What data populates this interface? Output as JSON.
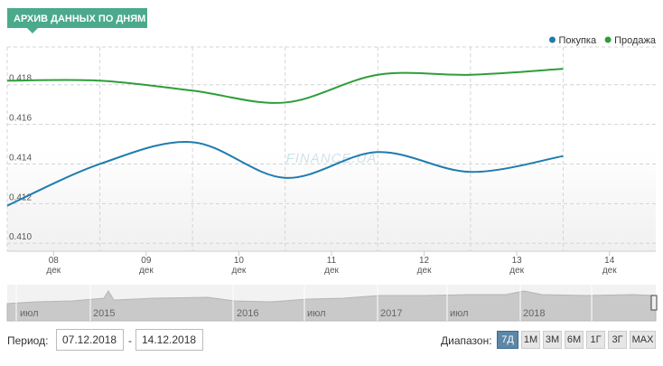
{
  "badge": "АРХИВ ДАННЫХ ПО ДНЯМ",
  "chart_data": {
    "type": "line",
    "watermark": "FINANCE.UA",
    "x": [
      7.5,
      8.5,
      9.5,
      10.5,
      11.5,
      12.5,
      13.5
    ],
    "series": [
      {
        "name": "Покупка",
        "color": "#1f7cae",
        "values": [
          0.4119,
          0.414,
          0.4151,
          0.4133,
          0.4146,
          0.4136,
          0.4144
        ]
      },
      {
        "name": "Продажа",
        "color": "#2e9e3a",
        "values": [
          0.4182,
          0.4182,
          0.4177,
          0.4171,
          0.4185,
          0.4185,
          0.4188
        ]
      }
    ],
    "xlim": [
      7.5,
      14.5
    ],
    "xticks": [
      {
        "value": 8,
        "label": "08 дек"
      },
      {
        "value": 9,
        "label": "09 дек"
      },
      {
        "value": 10,
        "label": "10 дек"
      },
      {
        "value": 11,
        "label": "11 дек"
      },
      {
        "value": 12,
        "label": "12 дек"
      },
      {
        "value": 13,
        "label": "13 дек"
      },
      {
        "value": 14,
        "label": "14 дек"
      }
    ],
    "ylim": [
      0.4096,
      0.4199
    ],
    "yticks": [
      {
        "value": 0.41,
        "label": "0.410"
      },
      0.412,
      0.414,
      0.416,
      0.418
    ],
    "grid": true,
    "legend": "top-right"
  },
  "navigator_labels": [
    "июл",
    "2015",
    "2016",
    "июл",
    "2017",
    "июл",
    "2018"
  ],
  "controls": {
    "period_label": "Период:",
    "from": "07.12.2018",
    "separator": "-",
    "to": "14.12.2018",
    "range_label": "Диапазон:",
    "buttons": [
      "7Д",
      "1М",
      "3М",
      "6М",
      "1Г",
      "3Г",
      "MAX"
    ],
    "active": "7Д"
  }
}
